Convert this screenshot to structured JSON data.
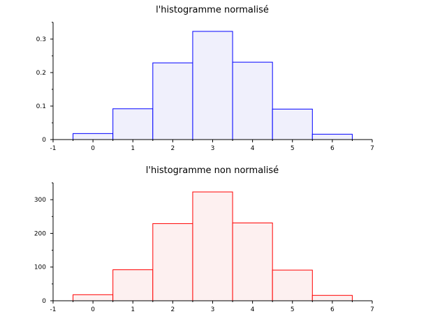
{
  "chart_data": [
    {
      "type": "bar",
      "title": "l'histogramme normalisé",
      "categories": [
        0,
        1,
        2,
        3,
        4,
        5,
        6
      ],
      "bin_edges": [
        -0.5,
        0.5,
        1.5,
        2.5,
        3.5,
        4.5,
        5.5,
        6.5
      ],
      "values": [
        0.018,
        0.092,
        0.229,
        0.323,
        0.231,
        0.091,
        0.016
      ],
      "xlim": [
        -1,
        7
      ],
      "ylim": [
        0,
        0.35
      ],
      "xticks": [
        "-1",
        "0",
        "1",
        "2",
        "3",
        "4",
        "5",
        "6",
        "7"
      ],
      "yticks": [
        "0",
        "0.1",
        "0.2",
        "0.3"
      ],
      "ytick_values": [
        0,
        0.1,
        0.2,
        0.3
      ],
      "minor_y": 0.05,
      "edge_color": "#0000ff",
      "fill_color": "#f0f0fc",
      "grid": false
    },
    {
      "type": "bar",
      "title": "l'histogramme non normalisé",
      "categories": [
        0,
        1,
        2,
        3,
        4,
        5,
        6
      ],
      "bin_edges": [
        -0.5,
        0.5,
        1.5,
        2.5,
        3.5,
        4.5,
        5.5,
        6.5
      ],
      "values": [
        18,
        92,
        229,
        323,
        231,
        91,
        16
      ],
      "xlim": [
        -1,
        7
      ],
      "ylim": [
        0,
        350
      ],
      "xticks": [
        "-1",
        "0",
        "1",
        "2",
        "3",
        "4",
        "5",
        "6",
        "7"
      ],
      "yticks": [
        "0",
        "100",
        "200",
        "300"
      ],
      "ytick_values": [
        0,
        100,
        200,
        300
      ],
      "minor_y": 50,
      "edge_color": "#ff0000",
      "fill_color": "#fdf0f0",
      "grid": false
    }
  ]
}
